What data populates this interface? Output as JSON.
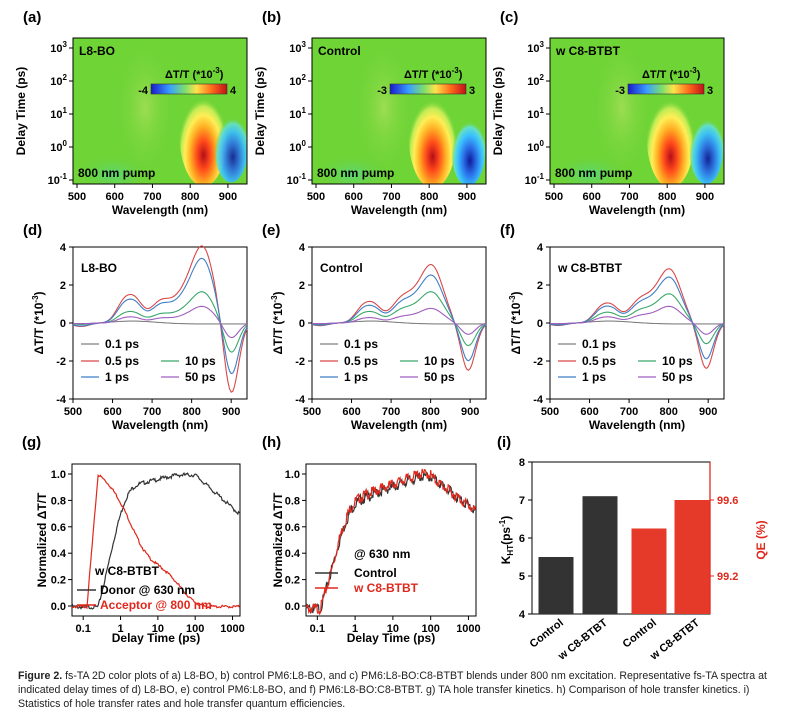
{
  "colors": {
    "green": "#6fd436",
    "dark_bar": "#333333",
    "red_bar": "#e53a2a",
    "axis_red": "#e0281c",
    "c01": "#808080",
    "c05": "#d94848",
    "c10": "#3aa76a",
    "c1": "#3f7fc7",
    "c50": "#a05ec0"
  },
  "maps": [
    {
      "panel": "(a)",
      "label": "L8-BO",
      "pump": "800 nm pump",
      "cbar_title": "ΔT/T (*10",
      "cbar_min": "-4",
      "cbar_max": "4",
      "pos": [
        830,
        0.9
      ],
      "neg": [
        900,
        0.9
      ],
      "negStrength": 0.9
    },
    {
      "panel": "(b)",
      "label": "Control",
      "pump": "800 nm pump",
      "cbar_title": "ΔT/T (*10",
      "cbar_min": "-3",
      "cbar_max": "3",
      "pos": [
        805,
        0.8
      ],
      "neg": [
        895,
        0.7
      ],
      "negStrength": 1.0
    },
    {
      "panel": "(c)",
      "label": "w C8-BTBT",
      "pump": "800 nm pump",
      "cbar_title": "ΔT/T (*10",
      "cbar_min": "-3",
      "cbar_max": "3",
      "pos": [
        805,
        0.8
      ],
      "neg": [
        895,
        0.8
      ],
      "negStrength": 0.95
    }
  ],
  "map_axes": {
    "ylabel": "Delay Time (ps)",
    "xlabel": "Wavelength (nm)",
    "xticks": [
      "500",
      "600",
      "700",
      "800",
      "900"
    ],
    "yticks": [
      "10",
      "10",
      "10",
      "10",
      "10",
      "10"
    ],
    "yexp": [
      "3",
      "2",
      "1",
      "0",
      "-1"
    ],
    "cbar_exp": "-3",
    "cbar_close": ")"
  },
  "spectra": [
    {
      "panel": "(d)",
      "label": "L8-BO",
      "peak": 830,
      "trough": 900,
      "amp": {
        "p01": 0.2,
        "p05": 3.7,
        "p10": 1.5,
        "p1": 3.1,
        "p50": 0.8
      },
      "neg": {
        "p05": -3.8,
        "p10": -1.6,
        "p1": -2.8,
        "p50": -0.8
      }
    },
    {
      "panel": "(e)",
      "label": "Control",
      "peak": 805,
      "trough": 895,
      "amp": {
        "p01": 0.1,
        "p05": 2.8,
        "p10": 1.5,
        "p1": 2.3,
        "p50": 0.7
      },
      "neg": {
        "p05": -2.5,
        "p10": -1.2,
        "p1": -2.0,
        "p50": -0.6
      }
    },
    {
      "panel": "(f)",
      "label": "w C8-BTBT",
      "peak": 805,
      "trough": 895,
      "amp": {
        "p01": 0.1,
        "p05": 2.6,
        "p10": 1.4,
        "p1": 2.2,
        "p50": 0.8
      },
      "neg": {
        "p05": -2.4,
        "p10": -1.1,
        "p1": -1.9,
        "p50": -0.6
      }
    }
  ],
  "spectra_axes": {
    "ylabel": "ΔT/T (*10",
    "ylabel_exp": "-3",
    "ylabel_close": ")",
    "xlabel": "Wavelength (nm)",
    "xticks": [
      "500",
      "600",
      "700",
      "800",
      "900"
    ],
    "yticks": [
      "4",
      "2",
      "0",
      "-2",
      "-4"
    ],
    "legend": [
      "0.1 ps",
      "0.5 ps",
      "10 ps",
      "1 ps",
      "50 ps"
    ]
  },
  "kinetics_g": {
    "panel": "(g)",
    "ylabel": "Normalized ΔT/T",
    "xlabel": "Delay Time (ps)",
    "xticks": [
      "0.1",
      "1",
      "10",
      "100",
      "1000"
    ],
    "yticks": [
      "0.0",
      "0.2",
      "0.4",
      "0.6",
      "0.8",
      "1.0"
    ],
    "legend_title": "w C8-BTBT",
    "series": [
      {
        "name": "Donor @ 630 nm",
        "color": "#333333"
      },
      {
        "name": "Acceptor @ 800 nm",
        "color": "#e0281c"
      }
    ]
  },
  "kinetics_h": {
    "panel": "(h)",
    "ylabel": "Normalized ΔT/T",
    "xlabel": "Delay Time (ps)",
    "xticks": [
      "0.1",
      "1",
      "10",
      "100",
      "1000"
    ],
    "yticks": [
      "0.0",
      "0.2",
      "0.4",
      "0.6",
      "0.8",
      "1.0"
    ],
    "legend_title": "@ 630 nm",
    "series": [
      {
        "name": "Control",
        "color": "#333333"
      },
      {
        "name": "w C8-BTBT",
        "color": "#e0281c"
      }
    ]
  },
  "chart_data": [
    {
      "type": "bar",
      "panel": "(i)",
      "categories": [
        "Control",
        "w C8-BTBT",
        "Control",
        "w C8-BTBT"
      ],
      "series": [
        {
          "name": "K_HT (ps^-1)",
          "axis": "left",
          "values": [
            5.5,
            7.1,
            null,
            null
          ]
        },
        {
          "name": "QE (%)",
          "axis": "right",
          "values": [
            null,
            null,
            99.45,
            99.6
          ]
        }
      ],
      "ylabel_left": "K",
      "ylabel_left_sub": "HT",
      "ylabel_left_unit": "(ps",
      "ylabel_left_exp": "-1",
      "ylabel_left_close": ")",
      "ylabel_right": "QE (%)",
      "ylim_left": [
        4,
        8
      ],
      "yticks_left": [
        "4",
        "5",
        "6",
        "7",
        "8"
      ],
      "ylim_right": [
        99.0,
        99.8
      ],
      "yticks_right": [
        "99.2",
        "99.6"
      ]
    }
  ],
  "caption": {
    "fig": "Figure 2.",
    "text": " fs-TA 2D color plots of a) L8-BO, b) control PM6:L8-BO, and c) PM6:L8-BO:C8-BTBT blends under 800 nm excitation. Representative fs-TA spectra at indicated delay times of d) L8-BO, e) control PM6:L8-BO, and f) PM6:L8-BO:C8-BTBT. g) TA hole transfer kinetics. h) Comparison of hole transfer kinetics. i) Statistics of hole transfer rates and hole transfer quantum efficiencies."
  }
}
